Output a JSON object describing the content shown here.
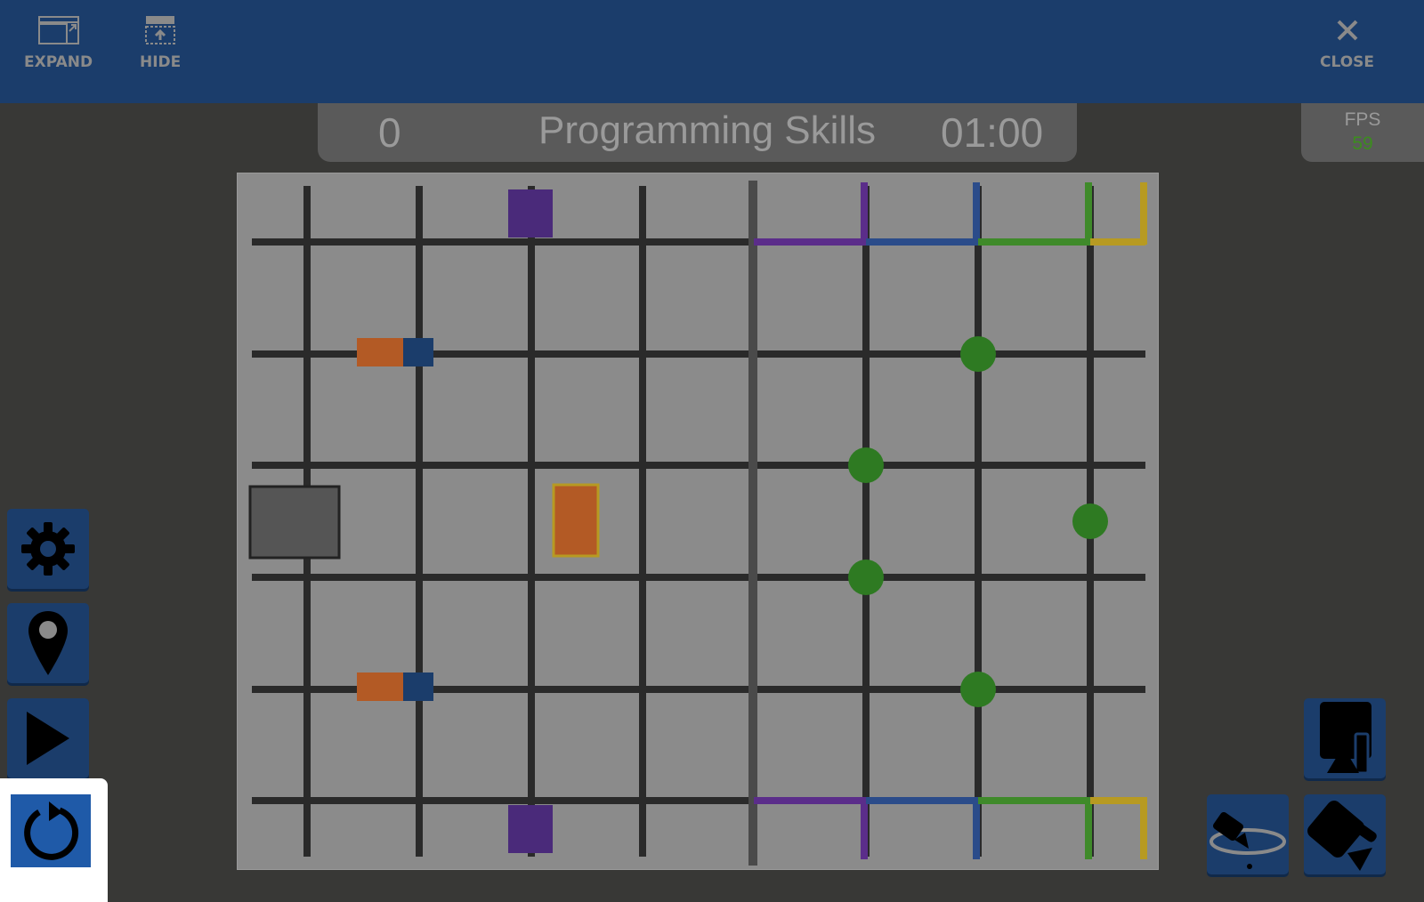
{
  "toolbar": {
    "expand_label": "EXPAND",
    "hide_label": "HIDE",
    "close_label": "CLOSE"
  },
  "scoreboard": {
    "score": "0",
    "mode": "Programming Skills",
    "timer": "01:00"
  },
  "fps": {
    "label": "FPS",
    "value": "59"
  },
  "side_buttons": [
    "gear-icon",
    "location-pin-icon",
    "play-icon",
    "reset-icon"
  ],
  "camera_buttons": [
    "top-camera-icon",
    "orbit-camera-icon",
    "angled-camera-icon"
  ],
  "colors": {
    "topbar": "#1b3d6b",
    "field": "#8b8b8b",
    "fps_value": "#3c8d1e",
    "green_goal": "#2e7a22"
  }
}
